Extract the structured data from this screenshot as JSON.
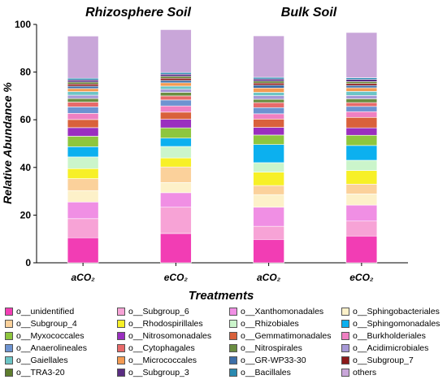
{
  "chart_data": {
    "type": "bar",
    "stacked": true,
    "ylabel": "Relative Abundance %",
    "xlabel": "Treatments",
    "ylim": [
      0,
      100
    ],
    "yticks": [
      "0",
      "20",
      "40",
      "60",
      "80",
      "100"
    ],
    "groups": [
      "Rhizosphere Soil",
      "Bulk Soil"
    ],
    "categories": [
      "aCO₂",
      "eCO₂",
      "aCO₂",
      "eCO₂"
    ],
    "series": [
      {
        "name": "o__unidentified",
        "color": "#f23db4",
        "values": [
          10.5,
          12.3,
          9.8,
          11.2
        ]
      },
      {
        "name": "o__Subgroup_6",
        "color": "#f7a3d6",
        "values": [
          8.0,
          11.0,
          5.5,
          6.3
        ]
      },
      {
        "name": "o__Xanthomonadales",
        "color": "#f08fe4",
        "values": [
          7.0,
          6.1,
          8.0,
          6.7
        ]
      },
      {
        "name": "o__Sphingobacteriales",
        "color": "#fdf1c9",
        "values": [
          4.8,
          4.3,
          5.3,
          4.7
        ]
      },
      {
        "name": "o__Subgroup_4",
        "color": "#fbd19b",
        "values": [
          5.0,
          6.5,
          3.8,
          4.1
        ]
      },
      {
        "name": "o__Rhodospirillales",
        "color": "#f7f027",
        "values": [
          4.2,
          3.8,
          5.6,
          5.7
        ]
      },
      {
        "name": "o__Rhizobiales",
        "color": "#cbf5cb",
        "values": [
          4.9,
          4.8,
          4.0,
          4.3
        ]
      },
      {
        "name": "o__Sphingomonadales",
        "color": "#0cb0ef",
        "values": [
          4.3,
          3.5,
          7.6,
          6.2
        ]
      },
      {
        "name": "o__Myxococcales",
        "color": "#8ec63e",
        "values": [
          4.4,
          4.3,
          4.0,
          4.3
        ]
      },
      {
        "name": "o__Nitrosomonadales",
        "color": "#9a2fbf",
        "values": [
          3.6,
          3.6,
          3.2,
          3.1
        ]
      },
      {
        "name": "o__Gemmatimonadales",
        "color": "#d9613b",
        "values": [
          3.4,
          3.0,
          3.5,
          4.4
        ]
      },
      {
        "name": "o__Burkholderiales",
        "color": "#ef80c2",
        "values": [
          2.6,
          2.6,
          2.2,
          2.4
        ]
      },
      {
        "name": "o__Anaerolineales",
        "color": "#6d93d1",
        "values": [
          2.7,
          2.5,
          2.6,
          2.2
        ]
      },
      {
        "name": "o__Cytophagales",
        "color": "#e86a6a",
        "values": [
          2.0,
          1.7,
          2.1,
          1.6
        ]
      },
      {
        "name": "o__Nitrospirales",
        "color": "#6a8d41",
        "values": [
          1.5,
          1.5,
          1.4,
          1.6
        ]
      },
      {
        "name": "o__Acidimicrobiales",
        "color": "#a699d6",
        "values": [
          1.4,
          1.3,
          1.5,
          1.4
        ]
      },
      {
        "name": "o__Gaiellales",
        "color": "#6cc5c6",
        "values": [
          1.5,
          1.3,
          1.4,
          1.7
        ]
      },
      {
        "name": "o__Micrococcales",
        "color": "#f49b52",
        "values": [
          1.3,
          1.4,
          1.8,
          1.5
        ]
      },
      {
        "name": "o__GR-WP33-30",
        "color": "#3d6fa8",
        "values": [
          1.0,
          1.0,
          1.2,
          1.0
        ]
      },
      {
        "name": "o__Subgroup_7",
        "color": "#8b1a1a",
        "values": [
          0.9,
          0.9,
          0.9,
          0.8
        ]
      },
      {
        "name": "o__TRA3-20",
        "color": "#5e7d2e",
        "values": [
          0.8,
          0.8,
          0.8,
          0.8
        ]
      },
      {
        "name": "o__Subgroup_3",
        "color": "#5a2d82",
        "values": [
          0.9,
          0.9,
          0.9,
          0.9
        ]
      },
      {
        "name": "o__Bacillales",
        "color": "#2a8ab0",
        "values": [
          0.7,
          0.7,
          0.7,
          0.7
        ]
      },
      {
        "name": "others",
        "color": "#c9a6d9",
        "values": [
          17.7,
          18.0,
          17.4,
          19.0
        ]
      }
    ]
  }
}
